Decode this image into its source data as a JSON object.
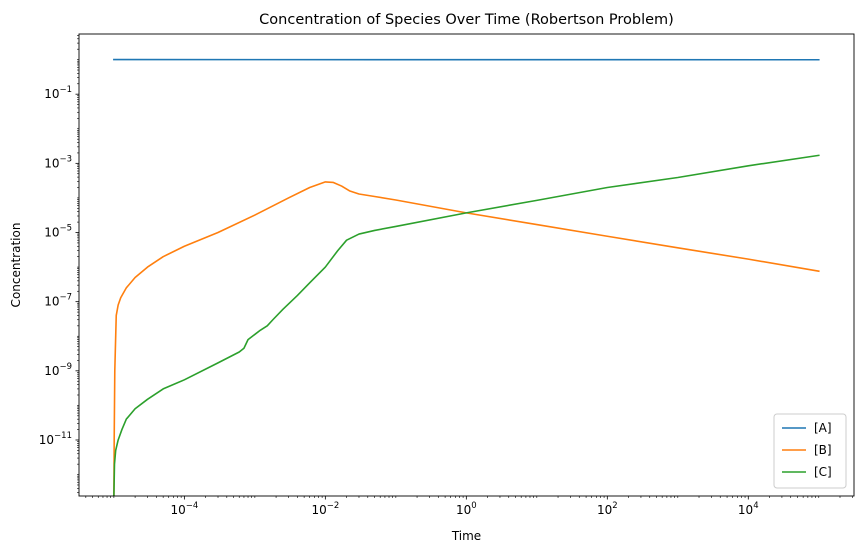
{
  "chart_data": {
    "type": "line",
    "title": "Concentration of Species Over Time (Robertson Problem)",
    "xlabel": "Time",
    "ylabel": "Concentration",
    "xscale": "log",
    "yscale": "log",
    "xlim": [
      3.2e-06,
      316000
    ],
    "ylim": [
      2.4e-13,
      5.5
    ],
    "x_ticks": [
      {
        "value": 0.0001,
        "base": "10",
        "exp": "−4"
      },
      {
        "value": 0.01,
        "base": "10",
        "exp": "−2"
      },
      {
        "value": 1,
        "base": "10",
        "exp": "0"
      },
      {
        "value": 100,
        "base": "10",
        "exp": "2"
      },
      {
        "value": 10000,
        "base": "10",
        "exp": "4"
      }
    ],
    "y_ticks": [
      {
        "value": 1e-11,
        "base": "10",
        "exp": "−11"
      },
      {
        "value": 1e-09,
        "base": "10",
        "exp": "−9"
      },
      {
        "value": 1e-07,
        "base": "10",
        "exp": "−7"
      },
      {
        "value": 1e-05,
        "base": "10",
        "exp": "−5"
      },
      {
        "value": 0.001,
        "base": "10",
        "exp": "−3"
      },
      {
        "value": 0.1,
        "base": "10",
        "exp": "−1"
      }
    ],
    "legend_position": "lower-right",
    "series": [
      {
        "name": "[A]",
        "color": "#1f77b4",
        "points": [
          [
            1e-05,
            1.0
          ],
          [
            100000,
            0.99
          ]
        ]
      },
      {
        "name": "[B]",
        "color": "#ff7f0e",
        "points": [
          [
            1e-05,
            2.4e-13
          ],
          [
            1.01e-05,
            1e-11
          ],
          [
            1.03e-05,
            1e-09
          ],
          [
            1.08e-05,
            4e-08
          ],
          [
            1.15e-05,
            8e-08
          ],
          [
            1.25e-05,
            1.3e-07
          ],
          [
            1.5e-05,
            2.5e-07
          ],
          [
            2e-05,
            5e-07
          ],
          [
            3e-05,
            1e-06
          ],
          [
            5e-05,
            2e-06
          ],
          [
            0.0001,
            4e-06
          ],
          [
            0.0003,
            1e-05
          ],
          [
            0.001,
            3.2e-05
          ],
          [
            0.003,
            0.0001
          ],
          [
            0.006,
            0.0002
          ],
          [
            0.01,
            0.00029
          ],
          [
            0.013,
            0.00028
          ],
          [
            0.017,
            0.00022
          ],
          [
            0.022,
            0.00016
          ],
          [
            0.03,
            0.00013
          ],
          [
            0.05,
            0.00011
          ],
          [
            0.1,
            8.7e-05
          ],
          [
            1,
            3.7e-05
          ],
          [
            10,
            1.7e-05
          ],
          [
            100,
            7.8e-06
          ],
          [
            1000,
            3.6e-06
          ],
          [
            10000,
            1.7e-06
          ],
          [
            100000,
            7.6e-07
          ]
        ]
      },
      {
        "name": "[C]",
        "color": "#2ca02c",
        "points": [
          [
            1e-05,
            2.4e-13
          ],
          [
            1.02e-05,
            2e-12
          ],
          [
            1.06e-05,
            5e-12
          ],
          [
            1.15e-05,
            1e-11
          ],
          [
            1.3e-05,
            2e-11
          ],
          [
            1.5e-05,
            4e-11
          ],
          [
            2e-05,
            8e-11
          ],
          [
            3e-05,
            1.5e-10
          ],
          [
            5e-05,
            3e-10
          ],
          [
            0.0001,
            5.5e-10
          ],
          [
            0.0003,
            1.7e-09
          ],
          [
            0.0006,
            3.5e-09
          ],
          [
            0.0007,
            4.5e-09
          ],
          [
            0.0008,
            8e-09
          ],
          [
            0.0012,
            1.5e-08
          ],
          [
            0.0015,
            2e-08
          ],
          [
            0.0018,
            3e-08
          ],
          [
            0.0025,
            6e-08
          ],
          [
            0.004,
            1.5e-07
          ],
          [
            0.006,
            3.5e-07
          ],
          [
            0.01,
            1e-06
          ],
          [
            0.015,
            3e-06
          ],
          [
            0.02,
            6e-06
          ],
          [
            0.03,
            9e-06
          ],
          [
            0.05,
            1.15e-05
          ],
          [
            0.1,
            1.5e-05
          ],
          [
            1,
            3.7e-05
          ],
          [
            10,
            8.5e-05
          ],
          [
            100,
            0.0002
          ],
          [
            1000,
            0.00039
          ],
          [
            10000,
            0.00085
          ],
          [
            100000,
            0.0017
          ]
        ]
      }
    ]
  }
}
